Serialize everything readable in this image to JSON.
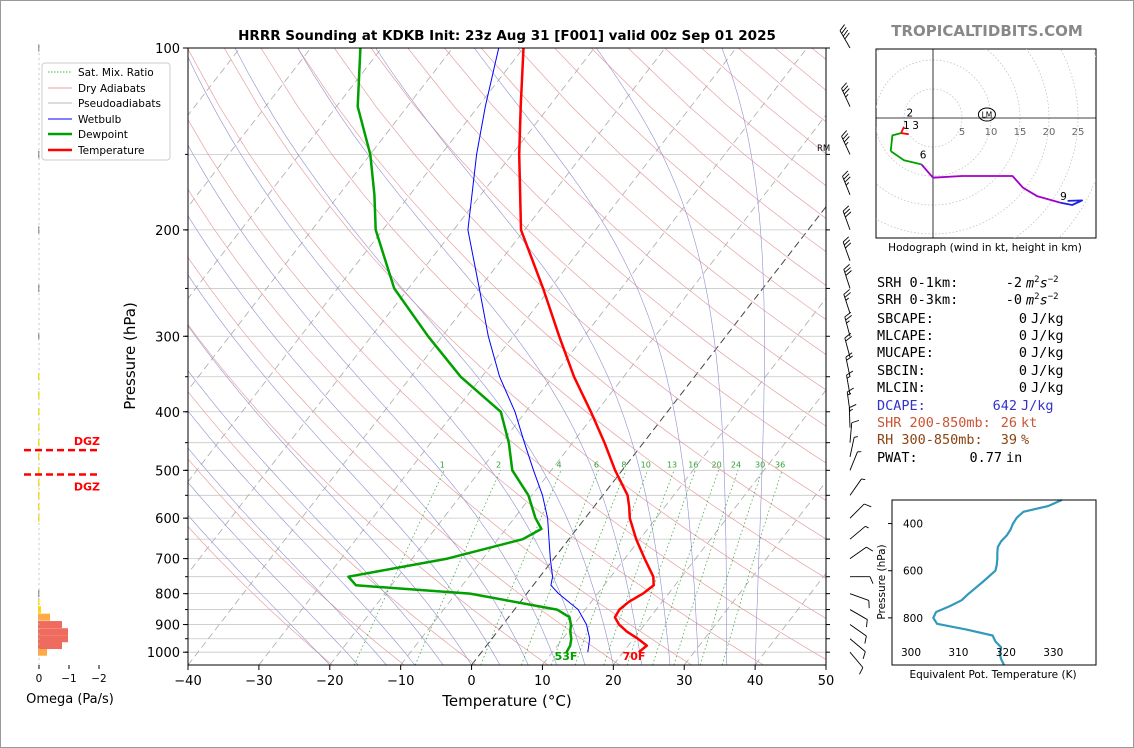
{
  "title": "HRRR Sounding at KDKB Init: 23z Aug 31 [F001] valid 00z Sep 01 2025",
  "brand": "TROPICALTIDBITS.COM",
  "skewt": {
    "xlabel": "Temperature (°C)",
    "ylabel": "Pressure (hPa)",
    "x_ticks": [
      "−40",
      "−30",
      "−20",
      "−10",
      "0",
      "10",
      "20",
      "30",
      "40",
      "50"
    ],
    "x_tick_values": [
      -40,
      -30,
      -20,
      -10,
      0,
      10,
      20,
      30,
      40,
      50
    ],
    "y_ticks": [
      "100",
      "200",
      "300",
      "400",
      "500",
      "600",
      "700",
      "800",
      "900",
      "1000"
    ],
    "y_tick_values": [
      100,
      200,
      300,
      400,
      500,
      600,
      700,
      800,
      900,
      1000
    ],
    "xlim": [
      -40,
      50
    ],
    "ylim": [
      1050,
      100
    ],
    "legend": [
      "Sat. Mix. Ratio",
      "Dry Adiabats",
      "Pseudoadiabats",
      "Wetbulb",
      "Dewpoint",
      "Temperature"
    ],
    "mixing_ratio_labels": [
      "1",
      "2",
      "4",
      "6",
      "8",
      "10",
      "13",
      "16",
      "20",
      "24",
      "30",
      "36"
    ],
    "surface_dewpoint_label": "53F",
    "surface_temp_label": "70F",
    "rm_label": "RM",
    "dgz_label": "DGZ"
  },
  "omega": {
    "xlabel": "Omega (Pa/s)",
    "x_ticks": [
      "0",
      "−1",
      "−2"
    ]
  },
  "hodograph": {
    "caption": "Hodograph (wind in kt, height in km)",
    "ring_labels": [
      "5",
      "10",
      "15",
      "20",
      "25"
    ],
    "height_labels": [
      "2",
      "1",
      "3",
      "6",
      "9"
    ],
    "lm_label": "LM"
  },
  "stats": [
    {
      "label": "SRH 0-1km:",
      "value": "-2",
      "unit": "m2s-2",
      "color": "#000000"
    },
    {
      "label": "SRH 0-3km:",
      "value": "-0",
      "unit": "m2s-2",
      "color": "#000000"
    },
    {
      "label": "SBCAPE:",
      "value": "0",
      "unit": "J/kg",
      "color": "#000000"
    },
    {
      "label": "MLCAPE:",
      "value": "0",
      "unit": "J/kg",
      "color": "#000000"
    },
    {
      "label": "MUCAPE:",
      "value": "0",
      "unit": "J/kg",
      "color": "#000000"
    },
    {
      "label": "SBCIN:",
      "value": "0",
      "unit": "J/kg",
      "color": "#000000"
    },
    {
      "label": "MLCIN:",
      "value": "0",
      "unit": "J/kg",
      "color": "#000000"
    },
    {
      "label": "DCAPE:",
      "value": "642",
      "unit": "J/kg",
      "color": "#3333cc"
    },
    {
      "label": "SHR 200-850mb:",
      "value": "26",
      "unit": "kt",
      "color": "#cc5533"
    },
    {
      "label": "RH 300-850mb:",
      "value": "39",
      "unit": "%",
      "color": "#8b4513"
    },
    {
      "label": "PWAT:",
      "value": "0.77",
      "unit": "in",
      "color": "#000000"
    }
  ],
  "theta_e_panel": {
    "xlabel": "Equivalent Pot. Temperature (K)",
    "ylabel": "Pressure (hPa)",
    "x_ticks": [
      "300",
      "310",
      "320",
      "330"
    ],
    "x_tick_values": [
      300,
      310,
      320,
      330
    ],
    "y_ticks": [
      "400",
      "600",
      "800"
    ],
    "y_tick_values": [
      400,
      600,
      800
    ],
    "xlim": [
      296,
      339
    ],
    "ylim": [
      1000,
      300
    ]
  },
  "chart_data": {
    "type": "line",
    "title": "HRRR Sounding at KDKB Init: 23z Aug 31 [F001] valid 00z Sep 01 2025",
    "xlabel": "Temperature (°C)",
    "ylabel": "Pressure (hPa)",
    "series": [
      {
        "name": "Temperature",
        "color": "#ff0000",
        "points": [
          [
            1000,
            22.2
          ],
          [
            975,
            22.6
          ],
          [
            950,
            20.6
          ],
          [
            925,
            18.3
          ],
          [
            900,
            16.4
          ],
          [
            875,
            15.0
          ],
          [
            850,
            14.8
          ],
          [
            825,
            15.3
          ],
          [
            800,
            16.4
          ],
          [
            775,
            17.0
          ],
          [
            750,
            16.0
          ],
          [
            700,
            12.8
          ],
          [
            650,
            9.5
          ],
          [
            600,
            6.3
          ],
          [
            575,
            5.0
          ],
          [
            550,
            3.5
          ],
          [
            500,
            -1.0
          ],
          [
            450,
            -5.5
          ],
          [
            400,
            -10.8
          ],
          [
            350,
            -17.0
          ],
          [
            300,
            -23.5
          ],
          [
            250,
            -31.0
          ],
          [
            200,
            -40.5
          ],
          [
            150,
            -49.0
          ],
          [
            125,
            -54.0
          ],
          [
            100,
            -60.0
          ]
        ]
      },
      {
        "name": "Dewpoint",
        "color": "#00a000",
        "points": [
          [
            1000,
            12.0
          ],
          [
            975,
            11.8
          ],
          [
            950,
            11.2
          ],
          [
            925,
            10.3
          ],
          [
            900,
            9.6
          ],
          [
            875,
            8.6
          ],
          [
            850,
            6.0
          ],
          [
            800,
            -8.0
          ],
          [
            775,
            -25.0
          ],
          [
            750,
            -27.0
          ],
          [
            700,
            -15.0
          ],
          [
            650,
            -6.5
          ],
          [
            625,
            -5.0
          ],
          [
            600,
            -7.0
          ],
          [
            550,
            -10.5
          ],
          [
            500,
            -15.5
          ],
          [
            450,
            -19.0
          ],
          [
            400,
            -23.5
          ],
          [
            350,
            -33.0
          ],
          [
            300,
            -42.0
          ],
          [
            250,
            -52.0
          ],
          [
            200,
            -61.0
          ],
          [
            175,
            -65.0
          ],
          [
            150,
            -70.0
          ],
          [
            125,
            -77.0
          ],
          [
            100,
            -83.0
          ]
        ]
      },
      {
        "name": "Wetbulb",
        "color": "#0000ff",
        "points": [
          [
            1000,
            15.0
          ],
          [
            950,
            13.8
          ],
          [
            900,
            11.8
          ],
          [
            850,
            9.0
          ],
          [
            800,
            4.5
          ],
          [
            775,
            2.5
          ],
          [
            750,
            1.8
          ],
          [
            700,
            -0.5
          ],
          [
            650,
            -2.8
          ],
          [
            600,
            -5.3
          ],
          [
            550,
            -8.5
          ],
          [
            500,
            -12.5
          ],
          [
            450,
            -16.8
          ],
          [
            400,
            -21.5
          ],
          [
            350,
            -27.5
          ],
          [
            300,
            -33.5
          ],
          [
            250,
            -40.0
          ],
          [
            200,
            -48.0
          ],
          [
            150,
            -55.0
          ],
          [
            125,
            -59.0
          ],
          [
            100,
            -63.5
          ]
        ]
      }
    ],
    "omega": [
      [
        1000,
        -0.3
      ],
      [
        975,
        -0.8
      ],
      [
        950,
        -1.0
      ],
      [
        925,
        -1.0
      ],
      [
        900,
        -0.8
      ],
      [
        875,
        -0.4
      ],
      [
        850,
        -0.1
      ],
      [
        825,
        -0.05
      ],
      [
        800,
        -0.02
      ],
      [
        600,
        -0.05
      ],
      [
        575,
        -0.05
      ],
      [
        550,
        -0.05
      ],
      [
        525,
        -0.05
      ],
      [
        500,
        -0.05
      ],
      [
        475,
        -0.05
      ],
      [
        450,
        -0.05
      ],
      [
        425,
        -0.05
      ],
      [
        400,
        -0.05
      ],
      [
        375,
        -0.05
      ],
      [
        350,
        -0.05
      ],
      [
        300,
        -0.03
      ],
      [
        250,
        -0.03
      ],
      [
        200,
        -0.03
      ],
      [
        150,
        -0.03
      ],
      [
        100,
        -0.03
      ]
    ],
    "dgz_pressures": [
      463,
      508
    ],
    "hodograph_kt": {
      "surface_0_1km": [
        [
          -5,
          -1.5
        ],
        [
          -5.5,
          -2.6
        ],
        [
          -4.2,
          -2.8
        ]
      ],
      "km_1_3": [
        [
          -5.5,
          -2.6
        ],
        [
          -7,
          -3
        ],
        [
          -7.3,
          -5.7
        ]
      ],
      "km_3_6": [
        [
          -7.3,
          -5.7
        ],
        [
          -5,
          -7.3
        ],
        [
          -2,
          -8
        ]
      ],
      "km_6_9": [
        [
          -2,
          -8
        ],
        [
          0,
          -10.3
        ],
        [
          5,
          -10
        ],
        [
          13.7,
          -10
        ],
        [
          15.5,
          -12
        ],
        [
          18,
          -13.5
        ],
        [
          22,
          -14.6
        ]
      ],
      "km_9_12": [
        [
          22,
          -14.6
        ],
        [
          24,
          -15
        ],
        [
          25.7,
          -14.2
        ],
        [
          23.2,
          -14.3
        ]
      ]
    },
    "theta_e_profile": [
      [
        1000,
        319.6
      ],
      [
        975,
        319.0
      ],
      [
        950,
        318.7
      ],
      [
        925,
        319.0
      ],
      [
        900,
        317.8
      ],
      [
        875,
        317.2
      ],
      [
        850,
        311.7
      ],
      [
        825,
        305.5
      ],
      [
        800,
        304.7
      ],
      [
        775,
        305.3
      ],
      [
        750,
        308.2
      ],
      [
        725,
        310.7
      ],
      [
        700,
        312.0
      ],
      [
        650,
        315.0
      ],
      [
        600,
        317.8
      ],
      [
        575,
        318.1
      ],
      [
        550,
        318.2
      ],
      [
        525,
        318.2
      ],
      [
        500,
        318.3
      ],
      [
        475,
        319.0
      ],
      [
        450,
        320.2
      ],
      [
        425,
        321.0
      ],
      [
        400,
        321.5
      ],
      [
        375,
        322.3
      ],
      [
        350,
        323.7
      ],
      [
        325,
        329.0
      ],
      [
        300,
        331.8
      ]
    ]
  }
}
